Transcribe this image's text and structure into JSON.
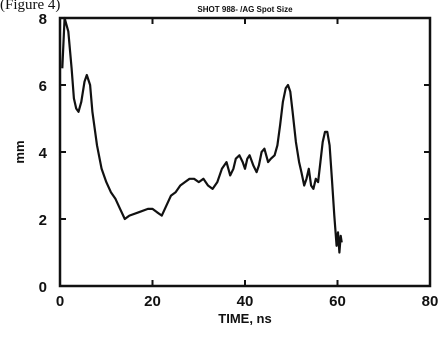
{
  "caption_fragment": "(Figure 4)",
  "chart_data": {
    "type": "line",
    "title": "SHOT 988- /AG Spot Size",
    "xlabel": "TIME, ns",
    "ylabel": "mm",
    "xlim": [
      0,
      80
    ],
    "ylim": [
      0,
      8
    ],
    "x_ticks": [
      0,
      20,
      40,
      60,
      80
    ],
    "x_tick_labels": [
      "0",
      "20",
      "40",
      "60",
      "80"
    ],
    "y_ticks": [
      0,
      2,
      4,
      6,
      8
    ],
    "y_tick_labels": [
      "0",
      "2",
      "4",
      "6",
      "8"
    ],
    "grid": false,
    "series": [
      {
        "color": "#111111",
        "points": [
          [
            0.5,
            6.5
          ],
          [
            1,
            8.0
          ],
          [
            1.8,
            7.6
          ],
          [
            2.5,
            6.5
          ],
          [
            3,
            5.6
          ],
          [
            3.5,
            5.3
          ],
          [
            4,
            5.2
          ],
          [
            4.6,
            5.5
          ],
          [
            5.3,
            6.1
          ],
          [
            5.8,
            6.3
          ],
          [
            6.5,
            6.0
          ],
          [
            7,
            5.2
          ],
          [
            8,
            4.2
          ],
          [
            9,
            3.5
          ],
          [
            10,
            3.1
          ],
          [
            11,
            2.8
          ],
          [
            12,
            2.6
          ],
          [
            13,
            2.3
          ],
          [
            14,
            2.0
          ],
          [
            15,
            2.1
          ],
          [
            17,
            2.2
          ],
          [
            19,
            2.3
          ],
          [
            20,
            2.3
          ],
          [
            21,
            2.2
          ],
          [
            22,
            2.1
          ],
          [
            23,
            2.4
          ],
          [
            24,
            2.7
          ],
          [
            25,
            2.8
          ],
          [
            26,
            3.0
          ],
          [
            27,
            3.1
          ],
          [
            28,
            3.2
          ],
          [
            29,
            3.2
          ],
          [
            30,
            3.1
          ],
          [
            31,
            3.2
          ],
          [
            32,
            3.0
          ],
          [
            33,
            2.9
          ],
          [
            34,
            3.1
          ],
          [
            35,
            3.5
          ],
          [
            36,
            3.7
          ],
          [
            36.8,
            3.3
          ],
          [
            37.5,
            3.5
          ],
          [
            38,
            3.8
          ],
          [
            38.8,
            3.9
          ],
          [
            39.5,
            3.7
          ],
          [
            40,
            3.5
          ],
          [
            40.5,
            3.8
          ],
          [
            41,
            3.9
          ],
          [
            41.8,
            3.6
          ],
          [
            42.5,
            3.4
          ],
          [
            43,
            3.6
          ],
          [
            43.6,
            4.0
          ],
          [
            44.2,
            4.1
          ],
          [
            45,
            3.7
          ],
          [
            45.6,
            3.8
          ],
          [
            46.4,
            3.9
          ],
          [
            47,
            4.2
          ],
          [
            47.6,
            4.8
          ],
          [
            48.2,
            5.5
          ],
          [
            48.8,
            5.9
          ],
          [
            49.3,
            6.0
          ],
          [
            49.8,
            5.8
          ],
          [
            50.3,
            5.2
          ],
          [
            51,
            4.3
          ],
          [
            51.7,
            3.7
          ],
          [
            52.2,
            3.4
          ],
          [
            52.8,
            3.0
          ],
          [
            53.3,
            3.2
          ],
          [
            53.8,
            3.5
          ],
          [
            54.3,
            3.0
          ],
          [
            54.8,
            2.9
          ],
          [
            55.3,
            3.2
          ],
          [
            55.8,
            3.1
          ],
          [
            56.3,
            3.7
          ],
          [
            56.8,
            4.3
          ],
          [
            57.3,
            4.6
          ],
          [
            57.8,
            4.6
          ],
          [
            58.3,
            4.2
          ],
          [
            58.8,
            3.2
          ],
          [
            59.3,
            2.1
          ],
          [
            59.8,
            1.2
          ],
          [
            60.1,
            1.6
          ],
          [
            60.4,
            1.0
          ],
          [
            60.7,
            1.5
          ],
          [
            60.9,
            1.3
          ]
        ]
      }
    ]
  }
}
